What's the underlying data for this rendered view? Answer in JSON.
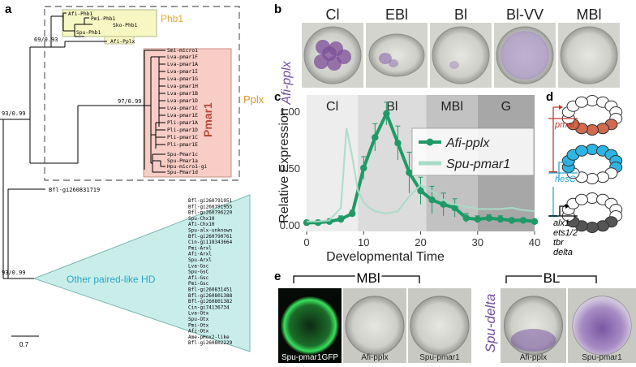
{
  "panels": {
    "a": {
      "letter": "a",
      "node_labels": [
        "93/0.99",
        "69/0.93",
        "97/0.99",
        "93/0.99"
      ],
      "phb1_taxa": [
        "Afi-Phb1",
        "Pmi-Phb1",
        "Sko-Phb1",
        "Spu-Phb1"
      ],
      "pplx_taxon": "Afi-Pplx",
      "pmar1_taxa": [
        "Smi-micro1",
        "Lva-pmar1F",
        "Lva-pmar1A",
        "Lva-pmar1I",
        "Lva-pmar1G",
        "Lva-pmar1H",
        "Lva-pmar1B",
        "Lva-pmar1D",
        "Lva-pmar1C",
        "Lva-pmar1E",
        "Pli-pmar1A",
        "Pli-pmar1D",
        "Pli-pmar1C",
        "Pli-pmar1E",
        "Spu-Pmar1c",
        "Spu-Pmar1a",
        "Hpu-micro1-gi",
        "Spu-Pmar1d"
      ],
      "outgroup_taxon": "Bfl-gi260831719",
      "other_taxa": [
        "Bfl-gi260791951",
        "Bfl-gi260791955",
        "Bfl-gi260796220",
        "Spu-Chx10",
        "Afi-Chx10",
        "Spu-alx-unknown",
        "Bfl-gi260790761",
        "Cin-gi118343664",
        "Pmi-Arxl",
        "Afi-Arxl",
        "Spu-Arxl",
        "Lva-Gsc",
        "Spu-GsC",
        "Afi-Gsc",
        "Pmi-Gsc",
        "Bfl-gi260831451",
        "Bfl-gi260801388",
        "Bfl-gi260801382",
        "Cin-gi74136734",
        "Lva-Otx",
        "Spu-Otx",
        "Pmi-Otx",
        "Afi-Otx",
        "Ame-pHox2-like",
        "Bfl-gi260802229"
      ],
      "clade_labels": {
        "phb1": "Phb1",
        "pplx": "Pplx",
        "pmar1": "Pmar1",
        "other": "Other paired-like HD"
      },
      "scale_label": "0.7",
      "colors": {
        "phb1_box": "#f7f7c4",
        "pplx_label": "#e39526",
        "pmar1_box": "#f7cdc6",
        "pmar1_label": "#b94a3a",
        "other_fill": "#c9eeea",
        "other_text": "#2aa6c2"
      }
    },
    "b": {
      "letter": "b",
      "gene_label": "Afi-pplx",
      "stages": [
        "Cl",
        "EBl",
        "Bl",
        "Bl-VV",
        "MBl"
      ]
    },
    "c": {
      "letter": "c",
      "chart_data": {
        "type": "line",
        "xlabel": "Developmental Time",
        "ylabel": "Relative Expression",
        "xlim": [
          0,
          40
        ],
        "ylim": [
          0,
          1.1
        ],
        "xticks": [
          "0",
          "10",
          "20",
          "30",
          "40"
        ],
        "yticks": [
          "0.00",
          "0.50",
          "1.00"
        ],
        "stage_bands": [
          {
            "label": "Cl",
            "from": 0,
            "to": 9,
            "color": "#ededed"
          },
          {
            "label": "Bl",
            "from": 9,
            "to": 21,
            "color": "#dcdcdc"
          },
          {
            "label": "MBl",
            "from": 21,
            "to": 30,
            "color": "#c2c2c2"
          },
          {
            "label": "G",
            "from": 30,
            "to": 40,
            "color": "#a7a7a7"
          }
        ],
        "series": [
          {
            "name": "Afi-pplx",
            "color": "#1f9a66",
            "x": [
              0,
              2,
              4,
              6,
              8,
              10,
              12,
              14,
              16,
              18,
              20,
              22,
              24,
              26,
              28,
              30,
              32,
              34,
              36,
              38,
              40
            ],
            "y": [
              0.02,
              0.02,
              0.03,
              0.05,
              0.1,
              0.5,
              0.77,
              0.98,
              0.72,
              0.46,
              0.3,
              0.22,
              0.18,
              0.15,
              0.06,
              0.05,
              0.06,
              0.05,
              0.04,
              0.04,
              0.03
            ],
            "error": [
              0.02,
              0.02,
              0.02,
              0.03,
              0.03,
              0.1,
              0.12,
              0.1,
              0.15,
              0.18,
              0.12,
              0.12,
              0.1,
              0.08,
              0.04,
              0.03,
              0.03,
              0.03,
              0.02,
              0.02,
              0.02
            ]
          },
          {
            "name": "Spu-pmar1",
            "color": "#a8dcc6",
            "x": [
              0,
              2,
              4,
              6,
              7,
              8,
              9,
              10,
              11,
              12,
              14,
              16,
              18,
              20,
              22,
              24,
              26,
              28,
              30,
              32,
              34,
              36,
              38,
              40
            ],
            "y": [
              0.03,
              0.03,
              0.04,
              0.15,
              0.85,
              0.6,
              0.3,
              0.2,
              0.15,
              0.12,
              0.1,
              0.12,
              0.25,
              0.35,
              0.3,
              0.22,
              0.18,
              0.16,
              0.14,
              0.14,
              0.14,
              0.15,
              0.13,
              0.12
            ]
          }
        ],
        "legend_position": "right",
        "grid": false
      }
    },
    "d": {
      "letter": "d",
      "genes": [
        {
          "name": "pmar1",
          "color": "#c0392b"
        },
        {
          "name": "hesC",
          "color": "#2aa6d4"
        },
        {
          "name": "alx1",
          "color": "#000000"
        },
        {
          "name": "ets1/2",
          "color": "#000000"
        },
        {
          "name": "tbr",
          "color": "#000000"
        },
        {
          "name": "delta",
          "color": "#000000"
        }
      ],
      "cell_colors": {
        "pmar1_fill": "#d06b50",
        "hesc_fill": "#2eb5e4",
        "skeleto_fill": "#555555",
        "empty": "#ffffff"
      }
    },
    "e": {
      "letter": "e",
      "side_label": "Spu-delta",
      "group_labels": [
        "MBl",
        "BL"
      ],
      "image_labels": [
        "Spu-pmar1GFP",
        "Afi-pplx",
        "Spu-pmar1",
        "Afi-pplx",
        "Spu-pmar1"
      ]
    }
  }
}
